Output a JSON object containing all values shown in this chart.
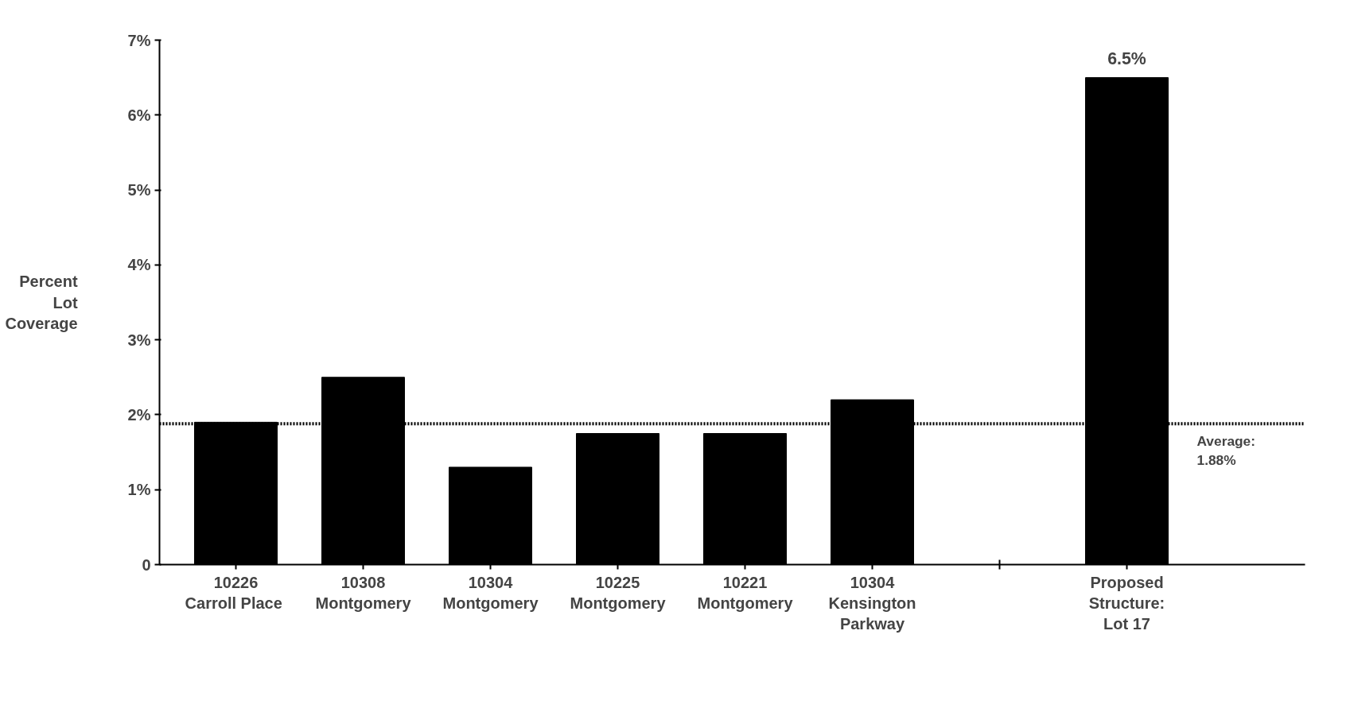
{
  "chart_data": {
    "type": "bar",
    "ylabel": "Percent\nLot\nCoverage",
    "categories": [
      "10226\nCarroll  Place",
      "10308\nMontgomery",
      "10304\nMontgomery",
      "10225\nMontgomery",
      "10221\nMontgomery",
      "10304\nKensington\nParkway",
      null,
      "Proposed\nStructure:\nLot 17"
    ],
    "values": [
      1.9,
      2.5,
      1.3,
      1.75,
      1.75,
      2.2,
      null,
      6.5
    ],
    "color": "#000000",
    "value_labels": [
      null,
      null,
      null,
      null,
      null,
      null,
      null,
      "6.5%"
    ],
    "ylim": [
      0,
      7
    ],
    "yticks": [
      0,
      {
        "value": 1,
        "label": "1%"
      },
      {
        "value": 2,
        "label": "2%"
      },
      {
        "value": 3,
        "label": "3%"
      },
      {
        "value": 4,
        "label": "4%"
      },
      {
        "value": 5,
        "label": "5%"
      },
      {
        "value": 6,
        "label": "6%"
      },
      {
        "value": 7,
        "label": "7%"
      }
    ],
    "ref_lines": [
      {
        "axis": "y",
        "value": 1.88,
        "label": "Average:\n1.88%",
        "line_style": "dotted",
        "color": "#000000"
      }
    ],
    "grid": false
  }
}
